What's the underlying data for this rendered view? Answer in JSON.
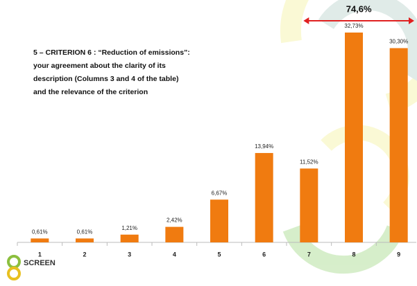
{
  "chart_data": {
    "type": "bar",
    "title": [
      "5 –  CRITERION 6 : “Reduction of emissions”:",
      "your agreement about the clarity of its",
      "description (Columns 3 and 4  of the table)",
      "and the relevance of the criterion"
    ],
    "categories": [
      "1",
      "2",
      "3",
      "4",
      "5",
      "6",
      "7",
      "8",
      "9"
    ],
    "values": [
      0.61,
      0.61,
      1.21,
      2.42,
      6.67,
      13.94,
      11.52,
      32.73,
      30.3
    ],
    "value_labels": [
      "0,61%",
      "0,61%",
      "1,21%",
      "2,42%",
      "6,67%",
      "13,94%",
      "11,52%",
      "32,73%",
      "30,30%"
    ],
    "color": "#f07b10",
    "annotation": "74,6%",
    "annotation_color": "#e02020",
    "logo_text": "SCREEN"
  }
}
